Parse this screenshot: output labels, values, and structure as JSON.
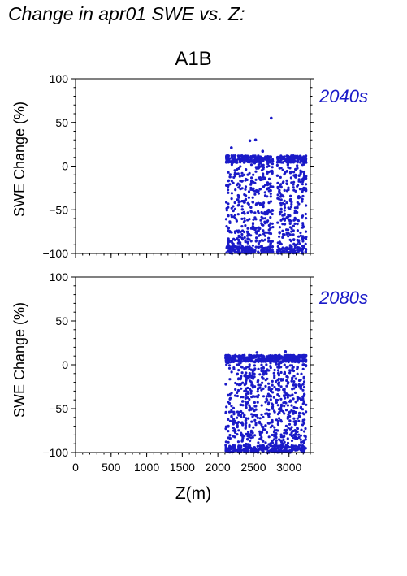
{
  "figure": {
    "title": "Change in apr01 SWE vs. Z:",
    "scenario": "A1B",
    "ylabel": "SWE Change (%)",
    "xlabel": "Z(m)",
    "point_color": "#1a1ac8"
  },
  "chart_data": [
    {
      "type": "scatter",
      "panel_label": "2040s",
      "xlabel": "Z(m)",
      "ylabel": "SWE Change (%)",
      "xlim": [
        0,
        3300
      ],
      "ylim": [
        -100,
        100
      ],
      "xticks": [
        0,
        500,
        1000,
        1500,
        2000,
        2500,
        3000
      ],
      "yticks": [
        -100,
        -50,
        0,
        50,
        100
      ],
      "x_tick_labels_shown": false,
      "color": "#1a1ac8",
      "x_range_of_points": [
        2120,
        3240
      ],
      "y_range_of_points": [
        -100,
        55
      ],
      "outliers": [
        {
          "x": 2750,
          "y": 55
        },
        {
          "x": 2450,
          "y": 29
        },
        {
          "x": 2530,
          "y": 30
        },
        {
          "x": 2190,
          "y": 21
        },
        {
          "x": 2630,
          "y": 17
        }
      ]
    },
    {
      "type": "scatter",
      "panel_label": "2080s",
      "xlabel": "Z(m)",
      "ylabel": "SWE Change (%)",
      "xlim": [
        0,
        3300
      ],
      "ylim": [
        -100,
        100
      ],
      "xticks": [
        0,
        500,
        1000,
        1500,
        2000,
        2500,
        3000
      ],
      "yticks": [
        -100,
        -50,
        0,
        50,
        100
      ],
      "x_tick_labels_shown": true,
      "color": "#1a1ac8",
      "x_range_of_points": [
        2120,
        3240
      ],
      "y_range_of_points": [
        -100,
        15
      ],
      "outliers": [
        {
          "x": 2950,
          "y": 15
        },
        {
          "x": 2550,
          "y": 14
        }
      ]
    }
  ]
}
